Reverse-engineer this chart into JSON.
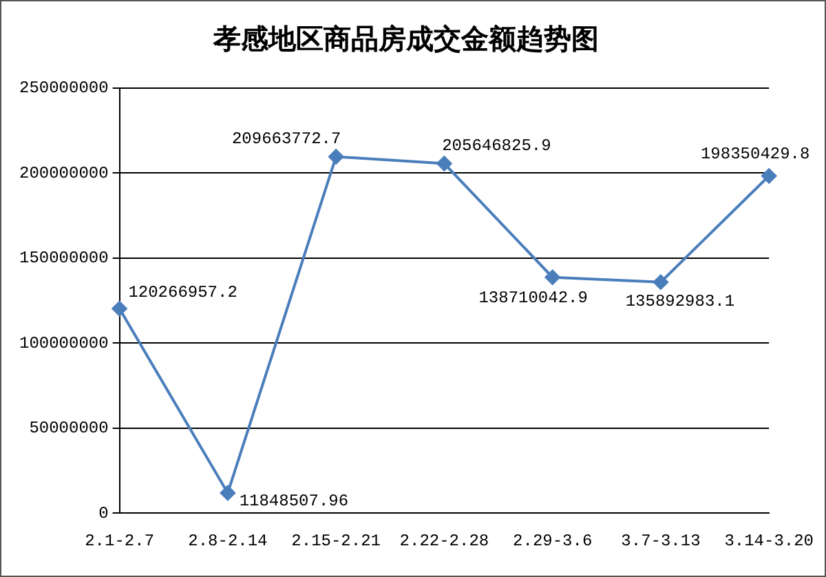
{
  "chart_data": {
    "type": "line",
    "title": "孝感地区商品房成交金额趋势图",
    "categories": [
      "2.1-2.7",
      "2.8-2.14",
      "2.15-2.21",
      "2.22-2.28",
      "2.29-3.6",
      "3.7-3.13",
      "3.14-3.20"
    ],
    "series": [
      {
        "color": "#4a7ebb",
        "values": [
          120266957.2,
          11848507.96,
          209663772.7,
          205646825.9,
          138710042.9,
          135892983.1,
          198350429.8
        ]
      }
    ],
    "ylim": [
      0,
      250000000
    ],
    "yticks": [
      0,
      50000000,
      100000000,
      150000000,
      200000000,
      250000000
    ],
    "grid": "y",
    "legend": false,
    "marker": "diamond",
    "line_style": "solid",
    "data_labels": true
  }
}
